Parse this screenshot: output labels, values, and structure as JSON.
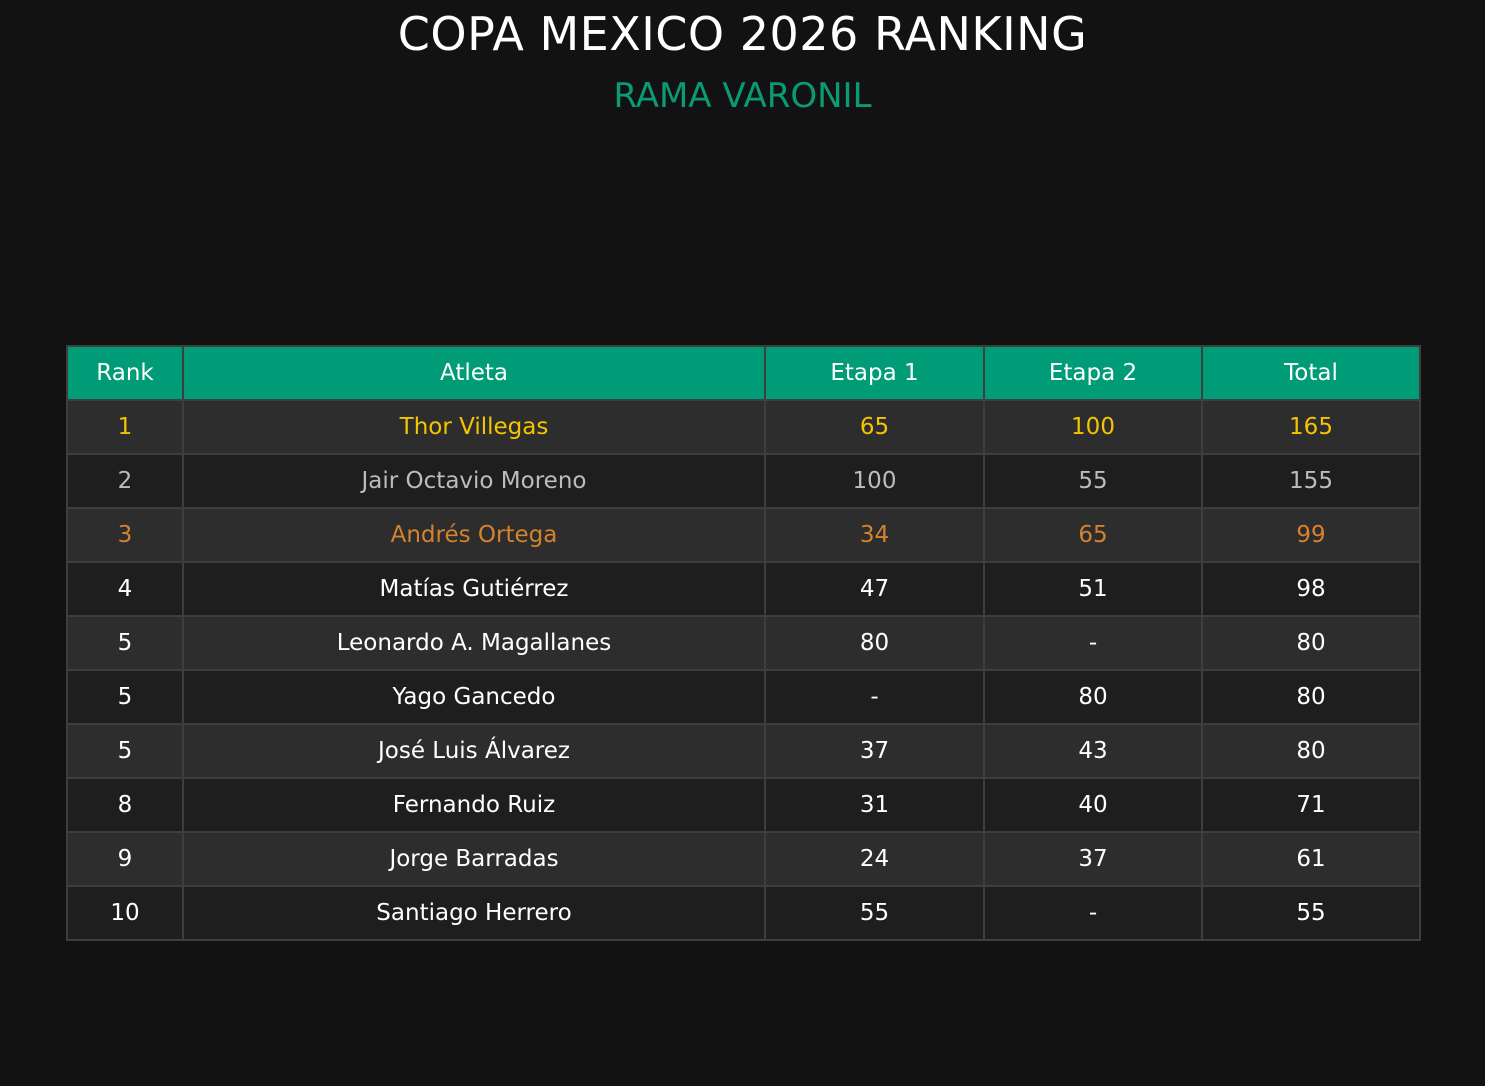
{
  "header": {
    "title": "COPA MEXICO 2026 RANKING",
    "subtitle": "RAMA VARONIL"
  },
  "colors": {
    "background": "#121212",
    "accent_green": "#009b77",
    "gold": "#f5c400",
    "silver": "#bcbcbc",
    "bronze": "#d4822e"
  },
  "table": {
    "columns": [
      "Rank",
      "Atleta",
      "Etapa 1",
      "Etapa 2",
      "Total"
    ],
    "rows": [
      {
        "rank": "1",
        "atleta": "Thor Villegas",
        "etapa1": "65",
        "etapa2": "100",
        "total": "165",
        "medal": "gold"
      },
      {
        "rank": "2",
        "atleta": "Jair Octavio Moreno",
        "etapa1": "100",
        "etapa2": "55",
        "total": "155",
        "medal": "silver"
      },
      {
        "rank": "3",
        "atleta": "Andrés Ortega",
        "etapa1": "34",
        "etapa2": "65",
        "total": "99",
        "medal": "bronze"
      },
      {
        "rank": "4",
        "atleta": "Matías Gutiérrez",
        "etapa1": "47",
        "etapa2": "51",
        "total": "98",
        "medal": ""
      },
      {
        "rank": "5",
        "atleta": "Leonardo A. Magallanes",
        "etapa1": "80",
        "etapa2": "-",
        "total": "80",
        "medal": ""
      },
      {
        "rank": "5",
        "atleta": "Yago Gancedo",
        "etapa1": "-",
        "etapa2": "80",
        "total": "80",
        "medal": ""
      },
      {
        "rank": "5",
        "atleta": "José Luis Álvarez",
        "etapa1": "37",
        "etapa2": "43",
        "total": "80",
        "medal": ""
      },
      {
        "rank": "8",
        "atleta": "Fernando Ruiz",
        "etapa1": "31",
        "etapa2": "40",
        "total": "71",
        "medal": ""
      },
      {
        "rank": "9",
        "atleta": "Jorge Barradas",
        "etapa1": "24",
        "etapa2": "37",
        "total": "61",
        "medal": ""
      },
      {
        "rank": "10",
        "atleta": "Santiago Herrero",
        "etapa1": "55",
        "etapa2": "-",
        "total": "55",
        "medal": ""
      }
    ]
  }
}
